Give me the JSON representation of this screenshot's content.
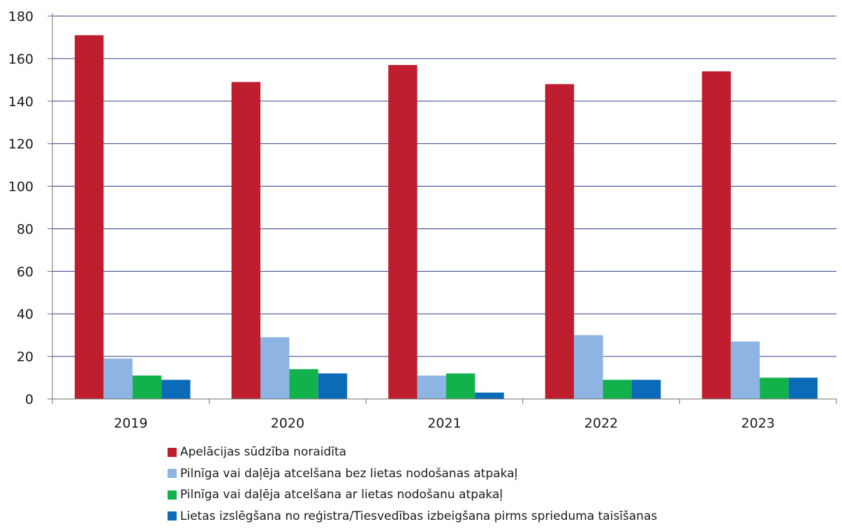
{
  "chart_data": {
    "type": "bar",
    "categories": [
      "2019",
      "2020",
      "2021",
      "2022",
      "2023"
    ],
    "series": [
      {
        "name": "Apelācijas sūdzība noraidīta",
        "color": "#BE1E2D",
        "values": [
          171,
          149,
          157,
          148,
          154
        ]
      },
      {
        "name": "Pilnīga vai daļēja atcelšana bez lietas nodošanas atpakaļ",
        "color": "#8EB4E3",
        "values": [
          19,
          29,
          11,
          30,
          27
        ]
      },
      {
        "name": "Pilnīga vai daļēja atcelšana ar lietas nodošanu atpakaļ",
        "color": "#12B14C",
        "values": [
          11,
          14,
          12,
          9,
          10
        ]
      },
      {
        "name": "Lietas izslēgšana no reģistra/Tiesvedības izbeigšana pirms sprieduma taisīšanas",
        "color": "#0B6BB8",
        "values": [
          9,
          12,
          3,
          9,
          10
        ]
      }
    ],
    "ylim": [
      0,
      180
    ],
    "yticks": [
      "0",
      "20",
      "40",
      "60",
      "80",
      "100",
      "120",
      "140",
      "160",
      "180"
    ],
    "grid": true,
    "gridline_color": "#2E3C8C",
    "legend_position": "bottom"
  }
}
